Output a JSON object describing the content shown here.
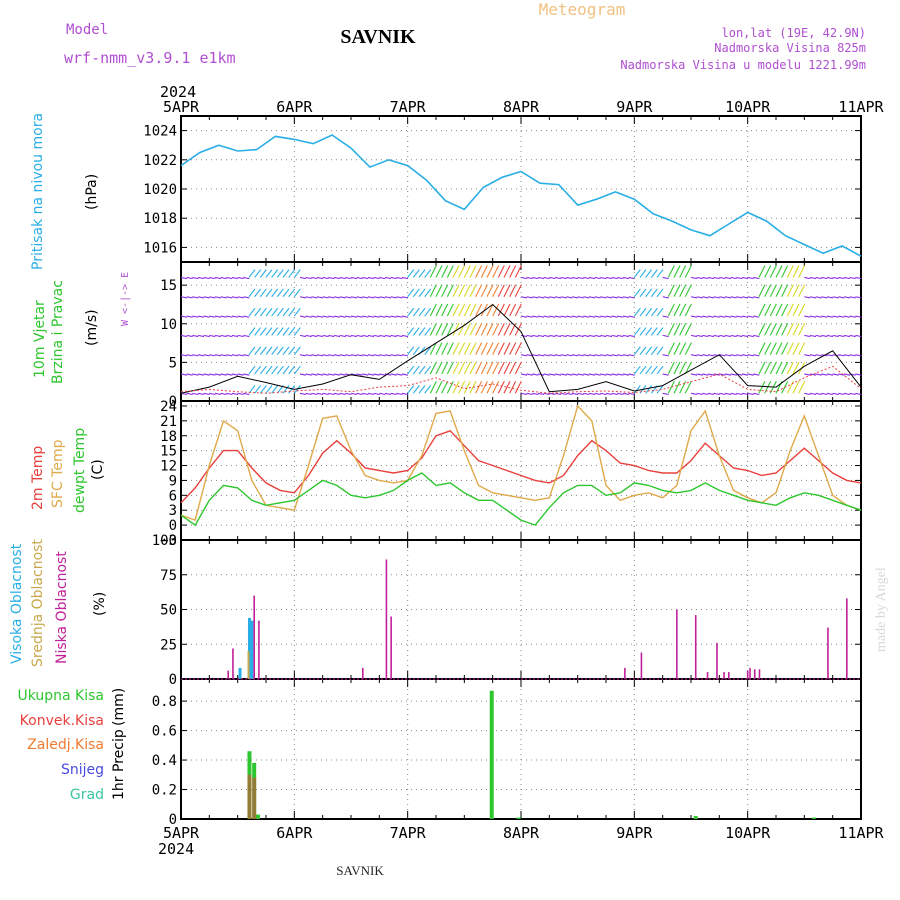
{
  "header": {
    "model_label": "Model",
    "model_name": "wrf-nmm_v3.9.1 e1km",
    "station": "SAVNIK",
    "meteogram": "Meteogram",
    "lonlat": "lon,lat (19E, 42.9N)",
    "elev": "Nadmorska Visina 825m",
    "elev_model": "Nadmorska Visina u modelu 1221.99m",
    "year_top": "2024",
    "year_bottom": "2024",
    "footer_station": "SAVNIK",
    "credit": "made by Angel"
  },
  "colors": {
    "pressure": "#29aee6",
    "temp2m": "#e8403c",
    "sfc": "#e0a94a",
    "dewpt": "#2ec62e",
    "high_cloud": "#29aee6",
    "mid_cloud": "#c9a84a",
    "low_cloud": "#c0209a",
    "precip_total": "#2ec62e",
    "precip_conv": "#e8403c",
    "precip_frozen": "#f07a30",
    "snow": "#4a4ae0",
    "graupel": "#3ac6a0",
    "model_text": "#b04fd0",
    "wind_axis_text": "#b04fd0"
  },
  "chart_data": [
    {
      "type": "line",
      "name": "pressure",
      "ylabel_left": "Pritisak na nivou mora",
      "unit": "(hPa)",
      "xlim": [
        0,
        144
      ],
      "ylim": [
        1015,
        1025
      ],
      "yticks": [
        1016,
        1018,
        1020,
        1022,
        1024
      ],
      "x_tick_labels": [
        "5APR",
        "6APR",
        "7APR",
        "8APR",
        "9APR",
        "10APR",
        "11APR"
      ],
      "x": [
        0,
        4,
        8,
        12,
        16,
        20,
        24,
        28,
        32,
        36,
        40,
        44,
        48,
        52,
        56,
        60,
        64,
        68,
        72,
        76,
        80,
        84,
        88,
        92,
        96,
        100,
        104,
        108,
        112,
        116,
        120,
        124,
        128,
        132,
        136,
        140,
        144
      ],
      "values": [
        1021.6,
        1022.5,
        1023.0,
        1022.6,
        1022.7,
        1023.6,
        1023.4,
        1023.1,
        1023.7,
        1022.8,
        1021.5,
        1022.0,
        1021.6,
        1020.6,
        1019.2,
        1018.6,
        1020.1,
        1020.8,
        1021.2,
        1020.4,
        1020.3,
        1018.9,
        1019.3,
        1019.8,
        1019.3,
        1018.3,
        1017.8,
        1017.2,
        1016.8,
        1017.6,
        1018.4,
        1017.8,
        1016.8,
        1016.2,
        1015.6,
        1016.1,
        1015.4
      ]
    },
    {
      "type": "line",
      "name": "wind",
      "ylabel_left": "10m Vjetar",
      "ylabel_left2": "Brzina i Pravac",
      "unit": "(m/s)",
      "compass": "W <-|-> E",
      "xlim": [
        0,
        144
      ],
      "ylim": [
        0,
        18
      ],
      "yticks": [
        0,
        5,
        10,
        15
      ],
      "x": [
        0,
        6,
        12,
        18,
        24,
        30,
        36,
        42,
        48,
        54,
        60,
        66,
        72,
        78,
        84,
        90,
        96,
        102,
        108,
        114,
        120,
        126,
        132,
        138,
        144
      ],
      "speed": [
        1.0,
        1.8,
        3.2,
        2.4,
        1.5,
        2.2,
        3.4,
        2.8,
        5.2,
        7.5,
        9.8,
        12.5,
        9.0,
        1.2,
        1.5,
        2.5,
        1.3,
        2.0,
        4.0,
        6.0,
        2.0,
        1.8,
        4.5,
        6.5,
        1.8
      ],
      "gust": [
        1.2,
        1.5,
        1.2,
        1.0,
        1.3,
        1.5,
        1.2,
        1.8,
        2.0,
        3.0,
        1.6,
        2.2,
        1.4,
        1.0,
        1.2,
        1.3,
        1.1,
        1.5,
        2.5,
        3.5,
        1.5,
        1.2,
        3.0,
        4.5,
        1.6
      ]
    },
    {
      "type": "line",
      "name": "temperature",
      "ylabel_left": "2m Temp",
      "ylabel_left2": "SFC Temp",
      "ylabel_left3": "dewpt Temp",
      "unit": "(C)",
      "xlim": [
        0,
        144
      ],
      "ylim": [
        -3,
        25
      ],
      "yticks": [
        -3,
        0,
        3,
        6,
        9,
        12,
        15,
        18,
        21,
        24
      ],
      "x": [
        0,
        3,
        6,
        9,
        12,
        15,
        18,
        21,
        24,
        27,
        30,
        33,
        36,
        39,
        42,
        45,
        48,
        51,
        54,
        57,
        60,
        63,
        66,
        69,
        72,
        75,
        78,
        81,
        84,
        87,
        90,
        93,
        96,
        99,
        102,
        105,
        108,
        111,
        114,
        117,
        120,
        123,
        126,
        129,
        132,
        135,
        138,
        141,
        144
      ],
      "series": [
        {
          "name": "2m Temp",
          "values": [
            4.5,
            7.5,
            11.5,
            15.0,
            15.0,
            11.5,
            8.5,
            7.0,
            6.5,
            10.0,
            14.5,
            17.0,
            14.5,
            11.5,
            11.0,
            10.5,
            11.0,
            13.5,
            18.0,
            19.0,
            16.0,
            13.0,
            12.0,
            11.0,
            10.0,
            9.0,
            8.5,
            10.0,
            14.0,
            17.0,
            15.0,
            12.5,
            12.0,
            11.0,
            10.5,
            10.5,
            13.0,
            16.5,
            14.0,
            11.5,
            11.0,
            10.0,
            10.5,
            13.0,
            15.5,
            13.0,
            10.5,
            9.0,
            8.5
          ]
        },
        {
          "name": "SFC Temp",
          "values": [
            2.0,
            1.0,
            12.0,
            21.0,
            19.0,
            9.0,
            4.0,
            3.5,
            3.0,
            12.0,
            21.5,
            22.0,
            15.0,
            10.0,
            9.0,
            8.5,
            9.0,
            14.0,
            22.5,
            23.0,
            15.0,
            8.0,
            6.5,
            6.0,
            5.5,
            5.0,
            5.5,
            14.0,
            24.0,
            21.0,
            8.0,
            5.0,
            6.0,
            6.5,
            5.5,
            8.0,
            19.0,
            23.0,
            14.0,
            7.0,
            5.5,
            4.5,
            6.5,
            15.0,
            22.0,
            14.0,
            6.0,
            4.0,
            3.0
          ]
        },
        {
          "name": "dewpt Temp",
          "values": [
            2.0,
            0.0,
            5.0,
            8.0,
            7.5,
            5.0,
            4.0,
            4.5,
            5.0,
            7.0,
            9.0,
            8.0,
            6.0,
            5.5,
            6.0,
            7.0,
            9.0,
            10.5,
            8.0,
            8.5,
            6.5,
            5.0,
            5.0,
            3.0,
            1.0,
            0.0,
            3.5,
            6.5,
            8.0,
            8.0,
            6.0,
            6.5,
            8.5,
            8.0,
            7.0,
            6.5,
            7.0,
            8.5,
            7.0,
            6.0,
            5.0,
            4.5,
            4.0,
            5.5,
            6.5,
            6.0,
            5.0,
            4.0,
            3.0
          ]
        }
      ]
    },
    {
      "type": "bar",
      "name": "clouds",
      "ylabel_left": "Visoka Oblacnost",
      "ylabel_left2": "Srednja Oblacnost",
      "ylabel_left3": "Niska Oblacnost",
      "unit": "(%)",
      "xlim": [
        0,
        144
      ],
      "ylim": [
        0,
        100
      ],
      "yticks": [
        0,
        25,
        50,
        75,
        100
      ],
      "series": [
        {
          "name": "Visoka Oblacnost",
          "x": [
            12.5,
            14.5,
            15.0
          ],
          "values": [
            8,
            44,
            42
          ]
        },
        {
          "name": "Srednja Oblacnost",
          "x": [
            14.3
          ],
          "values": [
            20
          ]
        },
        {
          "name": "Niska Oblacnost",
          "x": [
            10.0,
            11.0,
            15.5,
            16.5,
            38.5,
            43.5,
            44.5,
            94.0,
            97.5,
            105.0,
            109.0,
            111.5,
            113.5,
            115.0,
            116.0,
            120.0,
            120.5,
            121.5,
            122.5,
            137.0,
            141.0
          ],
          "values": [
            6,
            22,
            60,
            42,
            8,
            86,
            45,
            8,
            19,
            50,
            46,
            5,
            26,
            5,
            5,
            6,
            8,
            7,
            7,
            37,
            58
          ]
        }
      ]
    },
    {
      "type": "bar",
      "name": "precipitation",
      "ylabel_left": "1hr Precip",
      "unit": "(mm)",
      "legend": [
        "Ukupna Kisa",
        "Konvek.Kisa",
        "Zaledj.Kisa",
        "Snijeg",
        "Grad"
      ],
      "xlim": [
        0,
        144
      ],
      "ylim": [
        0,
        0.95
      ],
      "yticks": [
        0,
        0.2,
        0.4,
        0.6,
        0.8
      ],
      "x_tick_labels": [
        "5APR",
        "6APR",
        "7APR",
        "8APR",
        "9APR",
        "10APR",
        "11APR"
      ],
      "series": [
        {
          "name": "Ukupna Kisa",
          "x": [
            14.5,
            15.5,
            16.3,
            65.8,
            71.5,
            109.0,
            134.0
          ],
          "values": [
            0.46,
            0.38,
            0.03,
            0.87,
            0.01,
            0.02,
            0.01
          ]
        },
        {
          "name": "Konvek.Kisa",
          "x": [
            14.5,
            15.5
          ],
          "values": [
            0.3,
            0.28
          ]
        }
      ]
    }
  ]
}
